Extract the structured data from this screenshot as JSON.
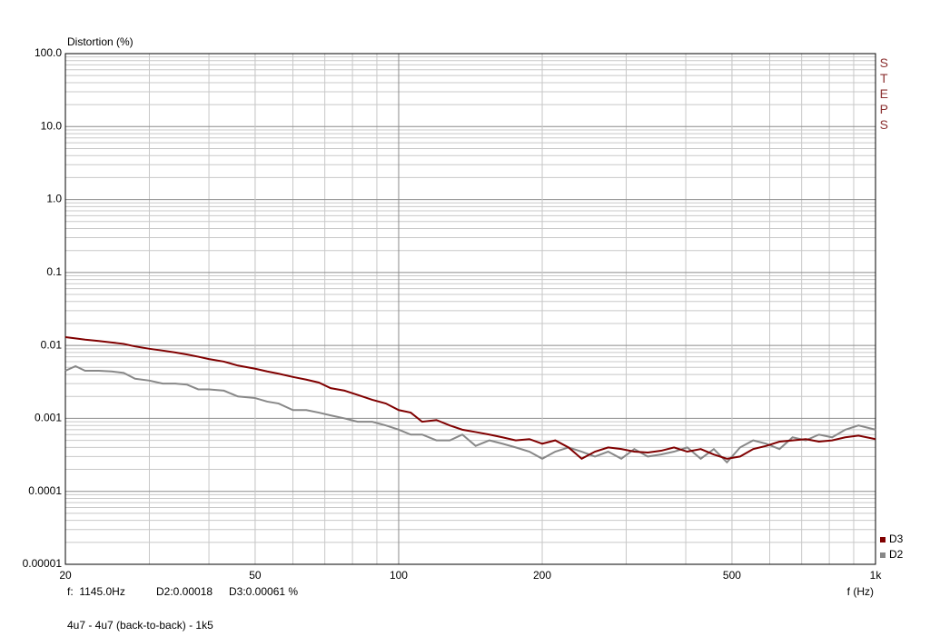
{
  "chart_data": {
    "type": "line",
    "y_axis_label": "Distortion (%)",
    "x_axis_label": "f (Hz)",
    "watermark": "STEPS",
    "cursor_frequency": "f:  1145.0Hz",
    "cursor_d2": "D2:0.00018",
    "cursor_d3": "D3:0.00061 %",
    "caption": "4u7 - 4u7 (back-to-back) - 1k5",
    "log_x": true,
    "log_y": true,
    "grid": true,
    "legend_position": "bottom-right",
    "xlim": [
      20,
      1000
    ],
    "ylim": [
      1e-05,
      100
    ],
    "xticks": [
      20,
      50,
      100,
      200,
      500,
      {
        "value": 1000,
        "label": "1k"
      }
    ],
    "yticks": [
      {
        "value": 100,
        "label": "100.0"
      },
      {
        "value": 10,
        "label": "10.0"
      },
      {
        "value": 1,
        "label": "1.0"
      },
      0.1,
      0.01,
      0.001,
      0.0001,
      1e-05
    ],
    "x": [
      20,
      21,
      22,
      23.5,
      25,
      26.5,
      28,
      30,
      32,
      34,
      36,
      38,
      40,
      43,
      46,
      50,
      53,
      56,
      60,
      64,
      68,
      72,
      77,
      82,
      88,
      94,
      100,
      106,
      112,
      120,
      128,
      136,
      145,
      155,
      165,
      176,
      188,
      200,
      213,
      227,
      242,
      258,
      275,
      293,
      312,
      333,
      355,
      378,
      403,
      430,
      458,
      488,
      520,
      554,
      590,
      629,
      670,
      714,
      761,
      811,
      864,
      921,
      1000
    ],
    "series": [
      {
        "name": "D3",
        "color": "#800000",
        "values": [
          0.013,
          0.0125,
          0.012,
          0.0115,
          0.011,
          0.0105,
          0.0097,
          0.009,
          0.0085,
          0.008,
          0.0075,
          0.007,
          0.0065,
          0.006,
          0.0053,
          0.0048,
          0.0044,
          0.0041,
          0.0037,
          0.0034,
          0.0031,
          0.0026,
          0.0024,
          0.0021,
          0.0018,
          0.0016,
          0.0013,
          0.0012,
          0.0009,
          0.00095,
          0.0008,
          0.0007,
          0.00065,
          0.0006,
          0.00055,
          0.0005,
          0.00052,
          0.00045,
          0.0005,
          0.0004,
          0.00028,
          0.00035,
          0.0004,
          0.00038,
          0.00035,
          0.00034,
          0.00036,
          0.0004,
          0.00035,
          0.00038,
          0.00032,
          0.00028,
          0.0003,
          0.00038,
          0.00042,
          0.00048,
          0.0005,
          0.00052,
          0.00048,
          0.0005,
          0.00055,
          0.00058,
          0.00052
        ]
      },
      {
        "name": "D2",
        "color": "#888888",
        "values": [
          0.0045,
          0.0052,
          0.0045,
          0.0045,
          0.0044,
          0.0042,
          0.0035,
          0.0033,
          0.003,
          0.003,
          0.0029,
          0.0025,
          0.0025,
          0.0024,
          0.002,
          0.0019,
          0.0017,
          0.0016,
          0.0013,
          0.0013,
          0.0012,
          0.0011,
          0.001,
          0.0009,
          0.0009,
          0.0008,
          0.0007,
          0.0006,
          0.0006,
          0.0005,
          0.0005,
          0.0006,
          0.00042,
          0.0005,
          0.00045,
          0.0004,
          0.00035,
          0.00028,
          0.00035,
          0.0004,
          0.00035,
          0.0003,
          0.00035,
          0.00028,
          0.00038,
          0.0003,
          0.00032,
          0.00035,
          0.0004,
          0.00028,
          0.00038,
          0.00025,
          0.0004,
          0.0005,
          0.00045,
          0.00038,
          0.00055,
          0.0005,
          0.0006,
          0.00055,
          0.0007,
          0.0008,
          0.0007
        ]
      }
    ]
  }
}
